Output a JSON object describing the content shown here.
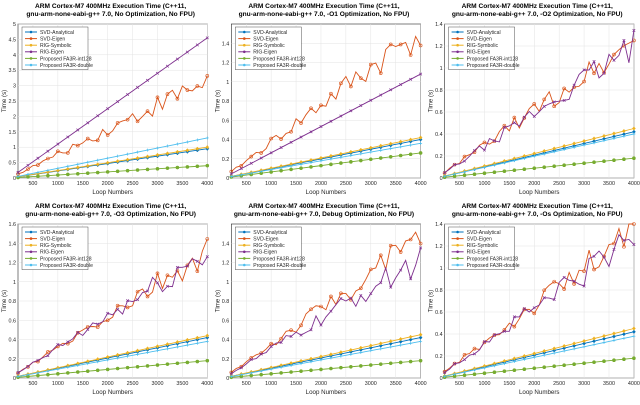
{
  "figure": {
    "description_free": true
  },
  "colors": {
    "svd_analytical": "#0072BD",
    "svd_eigen": "#D95319",
    "rig_symbolic": "#EDB120",
    "rig_eigen": "#7E2F8E",
    "fa3r_int128": "#77AC30",
    "fa3r_double": "#4DBEEE"
  },
  "chart_data": [
    {
      "type": "line",
      "title": "ARM Cortex-M7 400MHz Execution Time (C++11,\ngnu-arm-none-eabi-g++ 7.0, No Optimization, No FPU)",
      "xlabel": "Loop Numbers",
      "ylabel": "Time (s)",
      "xlim": [
        200,
        4000
      ],
      "ylim": [
        0,
        5
      ],
      "xticks": [
        "500",
        "1000",
        "1500",
        "2000",
        "2500",
        "3000",
        "3500",
        "4000"
      ],
      "yticks": [
        "0",
        "0.5",
        "1",
        "1.5",
        "2",
        "2.5",
        "3",
        "3.5",
        "4",
        "4.5",
        "5"
      ],
      "legend": [
        "SVD-Analytical",
        "SVD-Eigen",
        "RIG-Symbolic",
        "RIG-Eigen",
        "Proposed FA3R-int128",
        "Proposed FA3R-double"
      ],
      "legend_position": "top-left",
      "series": [
        {
          "name": "SVD-Analytical",
          "end": 0.95,
          "shape": "linear"
        },
        {
          "name": "SVD-Eigen",
          "end": 3.2,
          "shape": "noisy"
        },
        {
          "name": "RIG-Symbolic",
          "end": 1.0,
          "shape": "linear"
        },
        {
          "name": "RIG-Eigen",
          "end": 4.55,
          "shape": "linear"
        },
        {
          "name": "Proposed FA3R-int128",
          "end": 0.4,
          "shape": "linear"
        },
        {
          "name": "Proposed FA3R-double",
          "end": 1.3,
          "shape": "linear"
        }
      ]
    },
    {
      "type": "line",
      "title": "ARM Cortex-M7 400MHz Execution Time (C++11,\ngnu-arm-none-eabi-g++ 7.0, -O1 Optimization, No FPU)",
      "xlabel": "Loop Numbers",
      "ylabel": "Time (s)",
      "xlim": [
        200,
        4000
      ],
      "ylim": [
        0,
        1.6
      ],
      "xticks": [
        "500",
        "1000",
        "1500",
        "2000",
        "2500",
        "3000",
        "3500",
        "4000"
      ],
      "yticks": [
        "0",
        "0.2",
        "0.4",
        "0.6",
        "0.8",
        "1",
        "1.2",
        "1.4"
      ],
      "legend": [
        "SVD-Analytical",
        "SVD-Eigen",
        "RIG-Symbolic",
        "RIG-Eigen",
        "Proposed FA3R-int128",
        "Proposed FA3R-double"
      ],
      "legend_position": "top-left",
      "series": [
        {
          "name": "SVD-Analytical",
          "end": 0.4,
          "shape": "linear"
        },
        {
          "name": "SVD-Eigen",
          "end": 1.55,
          "shape": "noisy"
        },
        {
          "name": "RIG-Symbolic",
          "end": 0.42,
          "shape": "linear"
        },
        {
          "name": "RIG-Eigen",
          "end": 1.08,
          "shape": "linear"
        },
        {
          "name": "Proposed FA3R-int128",
          "end": 0.26,
          "shape": "linear"
        },
        {
          "name": "Proposed FA3R-double",
          "end": 0.36,
          "shape": "linear"
        }
      ]
    },
    {
      "type": "line",
      "title": "ARM Cortex-M7 400MHz Execution Time (C++11,\ngnu-arm-none-eabi-g++ 7.0, -O2 Optimization, No FPU)",
      "xlabel": "Loop Numbers",
      "ylabel": "Time (s)",
      "xlim": [
        200,
        4000
      ],
      "ylim": [
        0,
        1.4
      ],
      "xticks": [
        "500",
        "1000",
        "1500",
        "2000",
        "2500",
        "3000",
        "3500",
        "4000"
      ],
      "yticks": [
        "0",
        "0.2",
        "0.4",
        "0.6",
        "0.8",
        "1",
        "1.2",
        "1.4"
      ],
      "legend": [
        "SVD-Analytical",
        "SVD-Eigen",
        "RIG-Symbolic",
        "RIG-Eigen",
        "Proposed FA3R-int128",
        "Proposed FA3R-double"
      ],
      "legend_position": "top-left",
      "series": [
        {
          "name": "SVD-Analytical",
          "end": 0.42,
          "shape": "linear"
        },
        {
          "name": "SVD-Eigen",
          "end": 1.25,
          "shape": "noisy"
        },
        {
          "name": "RIG-Symbolic",
          "end": 0.45,
          "shape": "linear"
        },
        {
          "name": "RIG-Eigen",
          "end": 1.2,
          "shape": "noisy"
        },
        {
          "name": "Proposed FA3R-int128",
          "end": 0.18,
          "shape": "linear"
        },
        {
          "name": "Proposed FA3R-double",
          "end": 0.4,
          "shape": "linear"
        }
      ]
    },
    {
      "type": "line",
      "title": "ARM Cortex-M7 400MHz Execution Time (C++11,\ngnu-arm-none-eabi-g++ 7.0, -O3 Optimization, No FPU)",
      "xlabel": "Loop Numbers",
      "ylabel": "Time (s)",
      "xlim": [
        200,
        4000
      ],
      "ylim": [
        0,
        1.6
      ],
      "xticks": [
        "500",
        "1000",
        "1500",
        "2000",
        "2500",
        "3000",
        "3500",
        "4000"
      ],
      "yticks": [
        "0",
        "0.2",
        "0.4",
        "0.6",
        "0.8",
        "1",
        "1.2",
        "1.4",
        "1.6"
      ],
      "legend": [
        "SVD-Analytical",
        "SVD-Eigen",
        "RIG-Symbolic",
        "RIG-Eigen",
        "Proposed FA3R-int128",
        "Proposed FA3R-double"
      ],
      "legend_position": "top-left",
      "series": [
        {
          "name": "SVD-Analytical",
          "end": 0.42,
          "shape": "linear"
        },
        {
          "name": "SVD-Eigen",
          "end": 1.3,
          "shape": "noisy"
        },
        {
          "name": "RIG-Symbolic",
          "end": 0.44,
          "shape": "linear"
        },
        {
          "name": "RIG-Eigen",
          "end": 1.3,
          "shape": "noisy"
        },
        {
          "name": "Proposed FA3R-int128",
          "end": 0.18,
          "shape": "linear"
        },
        {
          "name": "Proposed FA3R-double",
          "end": 0.38,
          "shape": "linear"
        }
      ]
    },
    {
      "type": "line",
      "title": "ARM Cortex-M7 400MHz Execution Time (C++11,\ngnu-arm-none-eabi-g++ 7.0, Debug Optimization, No FPU)",
      "xlabel": "Loop Numbers",
      "ylabel": "Time (s)",
      "xlim": [
        200,
        4000
      ],
      "ylim": [
        0,
        1.6
      ],
      "xticks": [
        "500",
        "1000",
        "1500",
        "2000",
        "2500",
        "3000",
        "3500",
        "4000"
      ],
      "yticks": [
        "0",
        "0.2",
        "0.4",
        "0.6",
        "0.8",
        "1",
        "1.2",
        "1.4"
      ],
      "legend": [
        "SVD-Analytical",
        "SVD-Eigen",
        "RIG-Symbolic",
        "RIG-Eigen",
        "Proposed FA3R-int128",
        "Proposed FA3R-double"
      ],
      "legend_position": "top-left",
      "series": [
        {
          "name": "SVD-Analytical",
          "end": 0.42,
          "shape": "linear"
        },
        {
          "name": "SVD-Eigen",
          "end": 1.45,
          "shape": "noisy"
        },
        {
          "name": "RIG-Symbolic",
          "end": 0.45,
          "shape": "linear"
        },
        {
          "name": "RIG-Eigen",
          "end": 1.25,
          "shape": "noisy"
        },
        {
          "name": "Proposed FA3R-int128",
          "end": 0.18,
          "shape": "linear"
        },
        {
          "name": "Proposed FA3R-double",
          "end": 0.38,
          "shape": "linear"
        }
      ]
    },
    {
      "type": "line",
      "title": "ARM Cortex-M7 400MHz Execution Time (C++11,\ngnu-arm-none-eabi-g++ 7.0, -Os Optimization, No FPU)",
      "xlabel": "Loop Numbers",
      "ylabel": "Time (s)",
      "xlim": [
        200,
        4000
      ],
      "ylim": [
        0,
        1.4
      ],
      "xticks": [
        "500",
        "1000",
        "1500",
        "2000",
        "2500",
        "3000",
        "3500",
        "4000"
      ],
      "yticks": [
        "0",
        "0.2",
        "0.4",
        "0.6",
        "0.8",
        "1",
        "1.2",
        "1.4"
      ],
      "legend": [
        "SVD-Analytical",
        "SVD-Eigen",
        "RIG-Symbolic",
        "RIG-Eigen",
        "Proposed FA3R-int128",
        "Proposed FA3R-double"
      ],
      "legend_position": "top-left",
      "series": [
        {
          "name": "SVD-Analytical",
          "end": 0.42,
          "shape": "linear"
        },
        {
          "name": "SVD-Eigen",
          "end": 1.35,
          "shape": "noisy"
        },
        {
          "name": "RIG-Symbolic",
          "end": 0.45,
          "shape": "linear"
        },
        {
          "name": "RIG-Eigen",
          "end": 1.3,
          "shape": "noisy"
        },
        {
          "name": "Proposed FA3R-int128",
          "end": 0.18,
          "shape": "linear"
        },
        {
          "name": "Proposed FA3R-double",
          "end": 0.38,
          "shape": "linear"
        }
      ]
    }
  ]
}
